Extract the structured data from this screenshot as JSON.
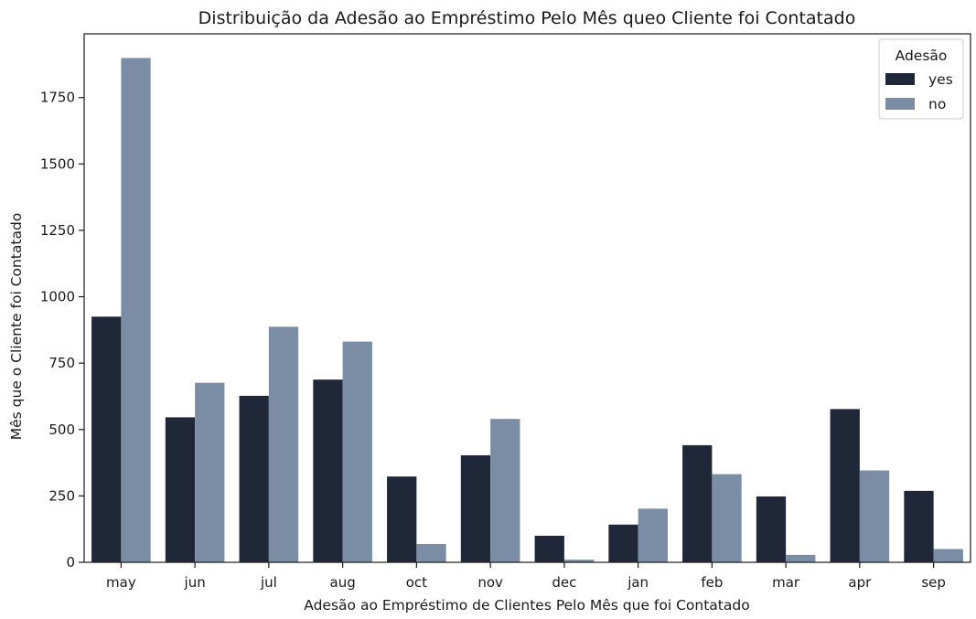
{
  "chart_data": {
    "type": "bar",
    "title": "Distribuição da Adesão ao Empréstimo Pelo Mês queo Cliente foi Contatado",
    "xlabel": "Adesão ao Empréstimo de Clientes Pelo Mês que foi Contatado",
    "ylabel": "Mês que o Cliente foi Contatado",
    "categories": [
      "may",
      "jun",
      "jul",
      "aug",
      "oct",
      "nov",
      "dec",
      "jan",
      "feb",
      "mar",
      "apr",
      "sep"
    ],
    "series": [
      {
        "name": "yes",
        "color": "#1f2739",
        "values": [
          925,
          546,
          627,
          688,
          323,
          403,
          100,
          142,
          441,
          248,
          577,
          269
        ]
      },
      {
        "name": "no",
        "color": "#7b8da4",
        "values": [
          1899,
          676,
          887,
          831,
          69,
          540,
          10,
          202,
          332,
          28,
          346,
          50
        ]
      }
    ],
    "ylim": [
      0,
      1990
    ],
    "yticks": [
      0,
      250,
      500,
      750,
      1000,
      1250,
      1500,
      1750
    ],
    "grid": false,
    "legend": {
      "title": "Adesão",
      "placement": "top-right"
    }
  }
}
